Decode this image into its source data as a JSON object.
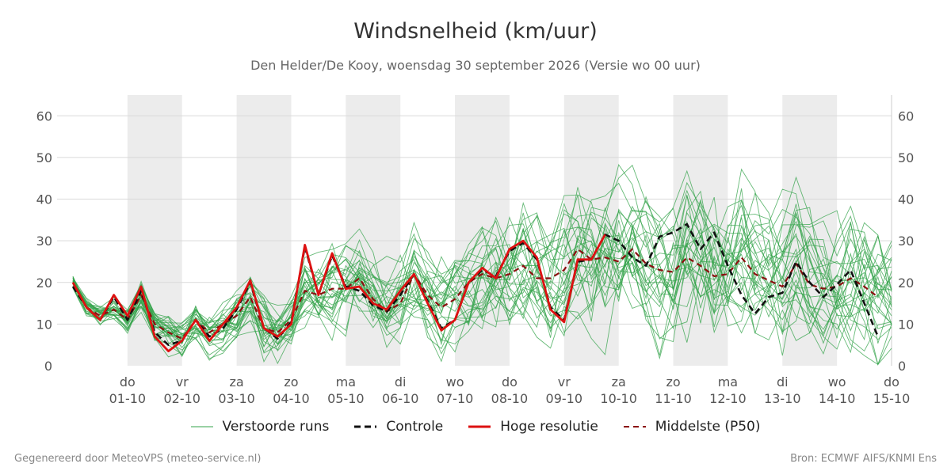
{
  "header": {
    "title": "Windsnelheid (km/uur)",
    "subtitle": "Den Helder/De Kooy, woensdag 30 september 2026 (Versie wo 00 uur)"
  },
  "legend": {
    "ensemble": "Verstoorde runs",
    "control": "Controle",
    "hires": "Hoge resolutie",
    "median": "Middelste (P50)"
  },
  "footer": {
    "left": "Gegenereerd door MeteoVPS (meteo-service.nl)",
    "right": "Bron: ECMWF AIFS/KNMI Ens"
  },
  "colors": {
    "ensemble": "#33a34a",
    "control": "#111111",
    "hires": "#dd1111",
    "median": "#8b0f0f",
    "band": "#ececec",
    "grid": "#d9d9d9"
  },
  "chart_data": {
    "type": "line",
    "ylim": [
      0,
      65
    ],
    "yticks": [
      0,
      10,
      20,
      30,
      40,
      50,
      60
    ],
    "x_start": "2026-09-30T00:00",
    "x_end": "2026-10-15T00:00",
    "shaded_days": [
      "2026-10-01",
      "2026-10-03",
      "2026-10-05",
      "2026-10-07",
      "2026-10-09",
      "2026-10-11",
      "2026-10-13"
    ],
    "day_ticks": [
      {
        "date": "2026-10-01",
        "day": "do",
        "label": "01-10"
      },
      {
        "date": "2026-10-02",
        "day": "vr",
        "label": "02-10"
      },
      {
        "date": "2026-10-03",
        "day": "za",
        "label": "03-10"
      },
      {
        "date": "2026-10-04",
        "day": "zo",
        "label": "04-10"
      },
      {
        "date": "2026-10-05",
        "day": "ma",
        "label": "05-10"
      },
      {
        "date": "2026-10-06",
        "day": "di",
        "label": "06-10"
      },
      {
        "date": "2026-10-07",
        "day": "wo",
        "label": "07-10"
      },
      {
        "date": "2026-10-08",
        "day": "do",
        "label": "08-10"
      },
      {
        "date": "2026-10-09",
        "day": "vr",
        "label": "09-10"
      },
      {
        "date": "2026-10-10",
        "day": "za",
        "label": "10-10"
      },
      {
        "date": "2026-10-11",
        "day": "zo",
        "label": "11-10"
      },
      {
        "date": "2026-10-12",
        "day": "ma",
        "label": "12-10"
      },
      {
        "date": "2026-10-13",
        "day": "di",
        "label": "13-10"
      },
      {
        "date": "2026-10-14",
        "day": "wo",
        "label": "14-10"
      },
      {
        "date": "2026-10-15",
        "day": "do",
        "label": "15-10"
      }
    ],
    "time_step_hours": 6,
    "ensemble_members": 30,
    "series": [
      {
        "name": "Hoge resolutie",
        "values": [
          20,
          14,
          11,
          17,
          12,
          19,
          7,
          3.5,
          6,
          11,
          6,
          10,
          14,
          20.5,
          9,
          7,
          10,
          29,
          17,
          27,
          18.5,
          19,
          15,
          13.5,
          18,
          22,
          15,
          8.5,
          11,
          20,
          23.5,
          21,
          28,
          30,
          26,
          13.5,
          10.5,
          25.5,
          25.5,
          31.5
        ]
      },
      {
        "name": "Controle",
        "values": [
          19,
          14,
          11,
          16.5,
          11,
          18,
          8,
          5,
          6,
          11,
          7,
          9,
          13.5,
          20,
          9,
          6.5,
          10.5,
          28.5,
          17,
          26.5,
          19,
          18,
          14.5,
          13,
          17,
          22,
          15.5,
          9,
          11,
          20,
          23,
          21.5,
          27.5,
          29.5,
          25.5,
          14,
          11,
          25,
          25.5,
          31.5,
          30,
          26,
          24,
          31,
          32,
          34,
          28,
          32,
          24,
          17,
          12.5,
          16.5,
          17.5,
          25,
          20,
          16.5,
          19.5,
          23,
          15,
          7
        ]
      },
      {
        "name": "Middelste (P50)",
        "values": [
          20,
          14,
          12,
          13.5,
          11,
          17,
          10,
          8,
          6.5,
          11,
          8,
          10,
          12,
          16.5,
          9,
          8,
          11,
          18,
          17,
          18.5,
          18.5,
          21,
          16,
          13,
          15,
          22,
          17,
          14,
          16,
          20,
          22,
          21,
          22,
          24,
          21,
          21,
          23,
          28,
          25.5,
          26,
          25,
          28,
          24.5,
          23,
          22.5,
          26,
          24,
          21.5,
          22,
          26,
          22,
          20.5,
          19,
          24.5,
          19.5,
          18.5,
          19,
          21,
          19,
          16.5
        ]
      }
    ]
  }
}
